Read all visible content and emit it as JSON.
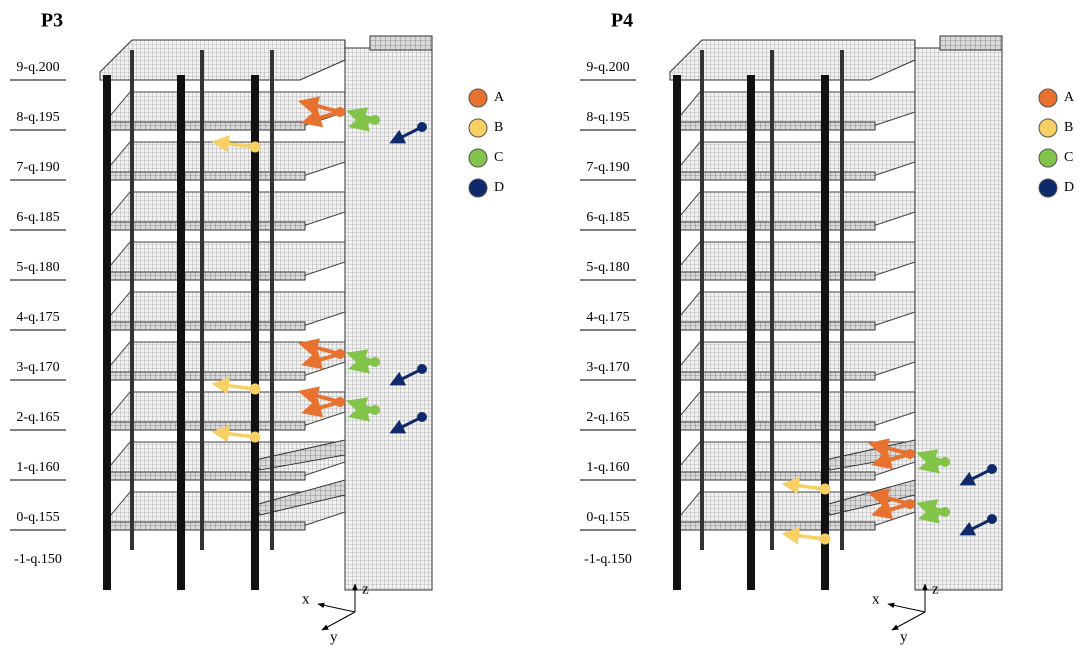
{
  "panels": [
    {
      "title": "P3",
      "levels": [
        "9-q.200",
        "8-q.195",
        "7-q.190",
        "6-q.185",
        "5-q.180",
        "4-q.175",
        "3-q.170",
        "2-q.165",
        "1-q.160",
        "0-q.155",
        "-1-q.150"
      ],
      "legend": [
        {
          "label": "A",
          "color": "#e8712f"
        },
        {
          "label": "B",
          "color": "#f7cf62"
        },
        {
          "label": "C",
          "color": "#82c34a"
        },
        {
          "label": "D",
          "color": "#0e2a6b"
        }
      ],
      "axes": {
        "x": "x",
        "y": "y",
        "z": "z"
      }
    },
    {
      "title": "P4",
      "levels": [
        "9-q.200",
        "8-q.195",
        "7-q.190",
        "6-q.185",
        "5-q.180",
        "4-q.175",
        "3-q.170",
        "2-q.165",
        "1-q.160",
        "0-q.155",
        "-1-q.150"
      ],
      "legend": [
        {
          "label": "A",
          "color": "#e8712f"
        },
        {
          "label": "B",
          "color": "#f7cf62"
        },
        {
          "label": "C",
          "color": "#82c34a"
        },
        {
          "label": "D",
          "color": "#0e2a6b"
        }
      ],
      "axes": {
        "x": "x",
        "y": "y",
        "z": "z"
      }
    }
  ]
}
